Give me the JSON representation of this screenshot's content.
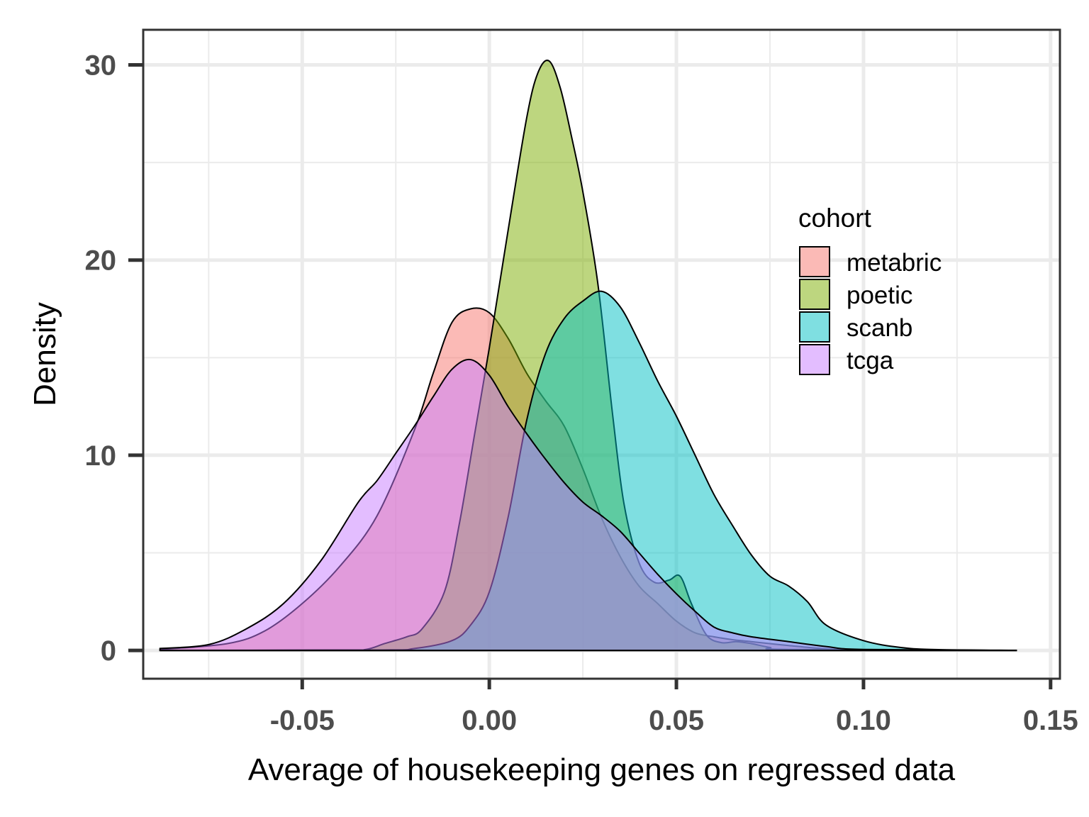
{
  "chart_data": {
    "type": "area",
    "subtype": "density",
    "title": "",
    "xlabel": "Average of housekeeping genes on regressed data",
    "ylabel": "Density",
    "xlim": [
      -0.0925,
      0.1525
    ],
    "ylim": [
      -1.45,
      31.8
    ],
    "x_ticks": [
      -0.05,
      0.0,
      0.05,
      0.1,
      0.15
    ],
    "x_tick_labels": [
      "-0.05",
      "0.00",
      "0.05",
      "0.10",
      "0.15"
    ],
    "y_ticks": [
      0,
      10,
      20,
      30
    ],
    "y_tick_labels": [
      "0",
      "10",
      "20",
      "30"
    ],
    "grid": true,
    "legend": {
      "title": "cohort",
      "position": "right-inside"
    },
    "fill_opacity": 0.5,
    "series": [
      {
        "name": "metabric",
        "color": "#F8766D",
        "x": [
          -0.088,
          -0.07,
          -0.06,
          -0.05,
          -0.04,
          -0.03,
          -0.02,
          -0.015,
          -0.01,
          -0.005,
          0.0,
          0.005,
          0.01,
          0.015,
          0.02,
          0.025,
          0.03,
          0.035,
          0.04,
          0.045,
          0.05,
          0.055,
          0.06,
          0.065,
          0.07,
          0.08,
          0.09,
          0.1,
          0.141
        ],
        "y": [
          0.05,
          0.35,
          1.0,
          2.4,
          4.3,
          6.9,
          11.3,
          14.2,
          16.8,
          17.5,
          17.3,
          16.0,
          14.2,
          12.8,
          11.5,
          9.3,
          6.8,
          4.8,
          3.3,
          2.4,
          1.5,
          0.9,
          0.7,
          0.55,
          0.45,
          0.25,
          0.08,
          0.02,
          0.0
        ]
      },
      {
        "name": "poetic",
        "color": "#7CAE00",
        "x": [
          -0.088,
          -0.04,
          -0.033,
          -0.028,
          -0.022,
          -0.018,
          -0.012,
          -0.008,
          -0.004,
          0.0,
          0.005,
          0.01,
          0.013,
          0.016,
          0.019,
          0.022,
          0.025,
          0.029,
          0.033,
          0.036,
          0.04,
          0.044,
          0.048,
          0.051,
          0.054,
          0.058,
          0.062,
          0.066,
          0.07,
          0.075,
          0.08,
          0.141
        ],
        "y": [
          0.0,
          0.02,
          0.05,
          0.35,
          0.7,
          1.1,
          3.0,
          6.5,
          11.0,
          15.5,
          21.5,
          27.3,
          29.6,
          30.2,
          28.8,
          26.3,
          23.5,
          18.8,
          12.0,
          7.5,
          4.5,
          3.5,
          3.6,
          3.8,
          2.4,
          0.8,
          0.4,
          0.45,
          0.35,
          0.15,
          0.05,
          0.0
        ]
      },
      {
        "name": "scanb",
        "color": "#00BFC4",
        "x": [
          -0.088,
          -0.03,
          -0.02,
          -0.01,
          -0.005,
          0.0,
          0.005,
          0.01,
          0.015,
          0.02,
          0.025,
          0.03,
          0.035,
          0.04,
          0.045,
          0.05,
          0.055,
          0.06,
          0.065,
          0.07,
          0.075,
          0.08,
          0.085,
          0.09,
          0.1,
          0.11,
          0.12,
          0.141
        ],
        "y": [
          0.0,
          0.02,
          0.1,
          0.5,
          1.3,
          3.0,
          6.8,
          11.8,
          15.2,
          17.0,
          17.9,
          18.4,
          17.6,
          15.8,
          13.8,
          12.0,
          10.0,
          8.0,
          6.4,
          4.9,
          3.8,
          3.3,
          2.5,
          1.3,
          0.5,
          0.15,
          0.04,
          0.0
        ]
      },
      {
        "name": "tcga",
        "color": "#C77CFF",
        "x": [
          -0.088,
          -0.075,
          -0.065,
          -0.055,
          -0.045,
          -0.035,
          -0.03,
          -0.025,
          -0.02,
          -0.015,
          -0.01,
          -0.005,
          0.0,
          0.005,
          0.01,
          0.015,
          0.02,
          0.025,
          0.03,
          0.035,
          0.04,
          0.045,
          0.05,
          0.055,
          0.06,
          0.065,
          0.07,
          0.08,
          0.09,
          0.1,
          0.141
        ],
        "y": [
          0.1,
          0.3,
          1.1,
          2.4,
          4.6,
          7.6,
          8.7,
          10.1,
          11.5,
          13.0,
          14.4,
          14.9,
          14.1,
          12.5,
          11.1,
          9.8,
          8.6,
          7.6,
          6.9,
          6.1,
          5.0,
          3.9,
          2.9,
          2.0,
          1.2,
          0.9,
          0.7,
          0.45,
          0.2,
          0.05,
          0.0
        ]
      }
    ]
  }
}
